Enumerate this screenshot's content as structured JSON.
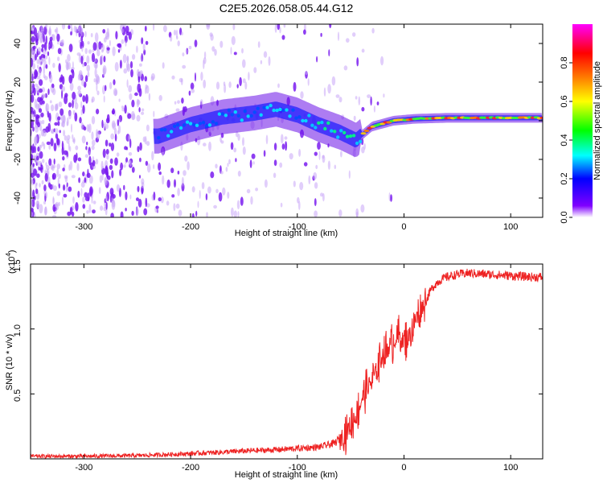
{
  "title": "C2E5.2026.058.05.44.G12",
  "chart_data": [
    {
      "type": "heatmap",
      "name": "spectrogram",
      "xlabel": "Height of straight line (km)",
      "ylabel": "Frequency (Hz)",
      "xlim": [
        -350,
        130
      ],
      "ylim": [
        -50,
        50
      ],
      "xticks": [
        -300,
        -200,
        -100,
        0,
        100
      ],
      "yticks": [
        -40,
        -20,
        0,
        20,
        40
      ],
      "xtick_labels": [
        "-300",
        "-200",
        "-100",
        "0",
        "100"
      ],
      "ytick_labels": [
        "-40",
        "-20",
        "0",
        "20",
        "40"
      ],
      "ridge": {
        "heights": [
          -230,
          -200,
          -170,
          -140,
          -120,
          -100,
          -80,
          -60,
          -45,
          -30,
          -10,
          10,
          40,
          80,
          130
        ],
        "frequencies": [
          -8,
          -2,
          2,
          4,
          6,
          3,
          -2,
          -6,
          -10,
          -3,
          0,
          1,
          1.5,
          1.5,
          1.5
        ]
      },
      "colorbar": {
        "label": "Normalized spectral amplitude",
        "range": [
          0,
          1
        ],
        "ticks": [
          0.0,
          0.2,
          0.4,
          0.6,
          0.8
        ],
        "tick_labels": [
          "0.0",
          "0.2",
          "0.4",
          "0.6",
          "0.8"
        ],
        "colormap": [
          "#ffffff",
          "#8000ff",
          "#0000ff",
          "#00ffff",
          "#00ff00",
          "#ffff00",
          "#ff8000",
          "#ff0000",
          "#ff00ff"
        ]
      }
    },
    {
      "type": "line",
      "name": "snr",
      "xlabel": "Height of straight line (km)",
      "ylabel": "SNR (10 * v/v)",
      "scale_label": "(x10",
      "scale_exponent": "4",
      "xlim": [
        -350,
        130
      ],
      "ylim": [
        0,
        1.5
      ],
      "xticks": [
        -300,
        -200,
        -100,
        0,
        100
      ],
      "yticks": [
        0.5,
        1.0,
        1.5
      ],
      "xtick_labels": [
        "-300",
        "-200",
        "-100",
        "0",
        "100"
      ],
      "ytick_labels": [
        "0.5",
        "1.0",
        "1.5"
      ],
      "color": "#ee2222",
      "series": [
        {
          "name": "SNR",
          "x": [
            -350,
            -300,
            -250,
            -200,
            -150,
            -120,
            -100,
            -80,
            -65,
            -55,
            -45,
            -40,
            -35,
            -30,
            -25,
            -20,
            -15,
            -10,
            -5,
            0,
            5,
            10,
            15,
            20,
            25,
            30,
            35,
            40,
            50,
            60,
            80,
            100,
            120,
            130
          ],
          "y": [
            0.02,
            0.02,
            0.025,
            0.04,
            0.06,
            0.07,
            0.08,
            0.09,
            0.12,
            0.2,
            0.33,
            0.45,
            0.55,
            0.6,
            0.7,
            0.8,
            0.85,
            0.9,
            0.95,
            0.9,
            0.95,
            1.05,
            1.15,
            1.2,
            1.3,
            1.35,
            1.38,
            1.4,
            1.42,
            1.43,
            1.42,
            1.41,
            1.4,
            1.4
          ]
        }
      ]
    }
  ]
}
